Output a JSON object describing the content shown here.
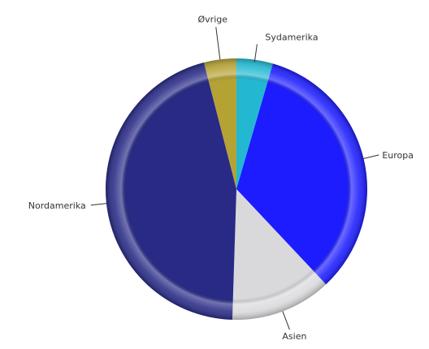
{
  "chart_data": {
    "type": "pie",
    "title": "",
    "slices": [
      {
        "label": "Sydamerika",
        "value": 4.5,
        "color": "#22b8d2"
      },
      {
        "label": "Europa",
        "value": 33.5,
        "color": "#1c1cff"
      },
      {
        "label": "Asien",
        "value": 12.5,
        "color": "#d9d9dc"
      },
      {
        "label": "Nordamerika",
        "value": 45.5,
        "color": "#282a86"
      },
      {
        "label": "Øvrige",
        "value": 4.0,
        "color": "#b5a234"
      }
    ],
    "legend": "none",
    "labels": "outside-with-leader-lines"
  }
}
